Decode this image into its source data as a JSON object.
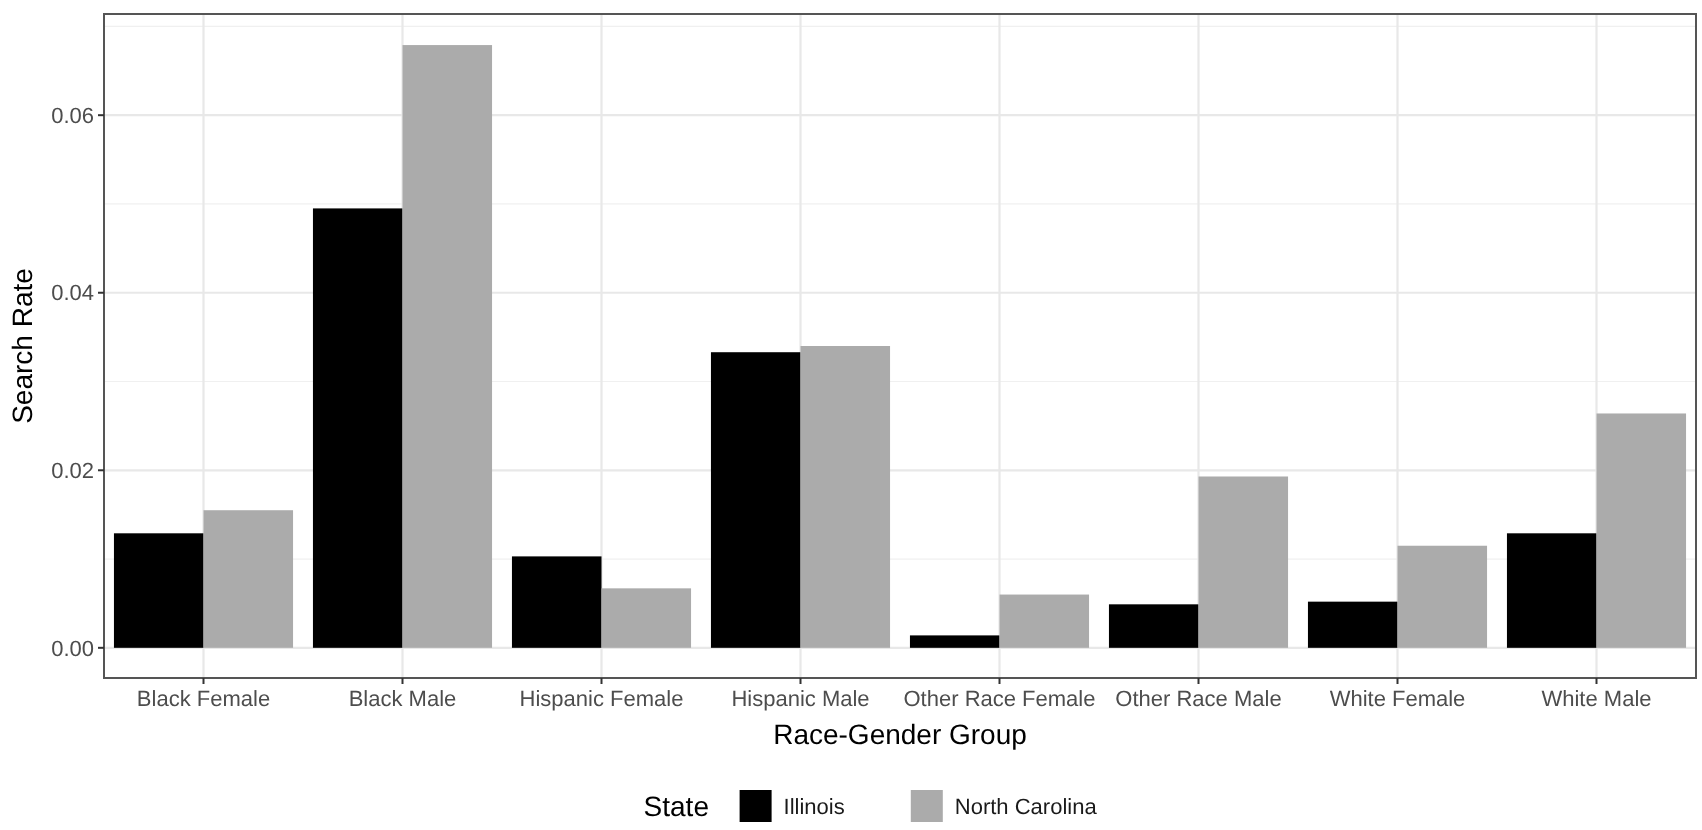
{
  "chart_data": {
    "type": "bar",
    "xlabel": "Race-Gender Group",
    "ylabel": "Search Rate",
    "legend_title": "State",
    "categories": [
      "Black Female",
      "Black Male",
      "Hispanic Female",
      "Hispanic Male",
      "Other Race Female",
      "Other Race Male",
      "White Female",
      "White Male"
    ],
    "series": [
      {
        "name": "Illinois",
        "color": "#000000",
        "values": [
          0.0129,
          0.0495,
          0.0103,
          0.0333,
          0.0014,
          0.0049,
          0.0052,
          0.0129
        ]
      },
      {
        "name": "North Carolina",
        "color": "#ababab",
        "values": [
          0.0155,
          0.0679,
          0.0067,
          0.034,
          0.006,
          0.0193,
          0.0115,
          0.0264
        ]
      }
    ],
    "ylim": [
      -0.0034,
      0.0714
    ],
    "yticks": [
      {
        "value": 0,
        "label": "0.00"
      },
      {
        "value": 0.02,
        "label": "0.02"
      },
      {
        "value": 0.04,
        "label": "0.04"
      },
      {
        "value": 0.06,
        "label": "0.06"
      }
    ],
    "grid": true,
    "legend": "bottom"
  }
}
